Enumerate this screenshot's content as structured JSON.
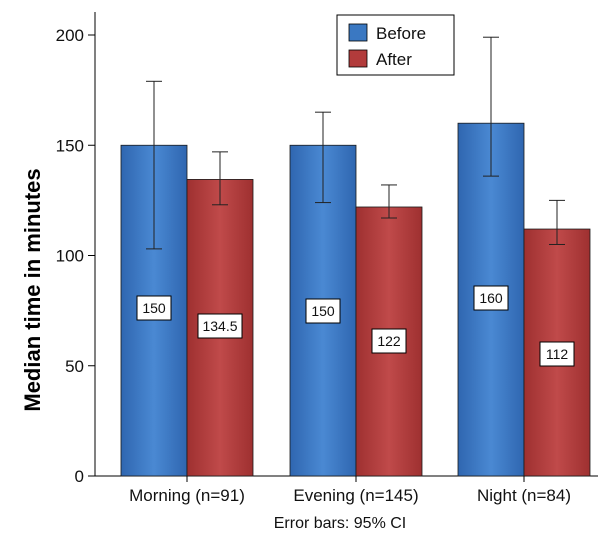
{
  "chart_data": {
    "type": "bar",
    "ylabel": "Median time in minutes",
    "xlabel": "",
    "footnote": "Error bars: 95% CI",
    "ylim": [
      0,
      210
    ],
    "yticks": [
      0,
      50,
      100,
      150,
      200
    ],
    "legend_position": "top-center",
    "categories": [
      "Morning (n=91)",
      "Evening (n=145)",
      "Night (n=84)"
    ],
    "series": [
      {
        "name": "Before",
        "color": "#3a78c2",
        "values": [
          150,
          150,
          160
        ],
        "labels": [
          "150",
          "150",
          "160"
        ],
        "ci": [
          [
            103,
            179
          ],
          [
            124,
            165
          ],
          [
            136,
            199
          ]
        ]
      },
      {
        "name": "After",
        "color": "#b23b3b",
        "values": [
          134.5,
          122,
          112
        ],
        "labels": [
          "134.5",
          "122",
          "112"
        ],
        "ci": [
          [
            123,
            147
          ],
          [
            117,
            132
          ],
          [
            105,
            125
          ]
        ]
      }
    ]
  }
}
